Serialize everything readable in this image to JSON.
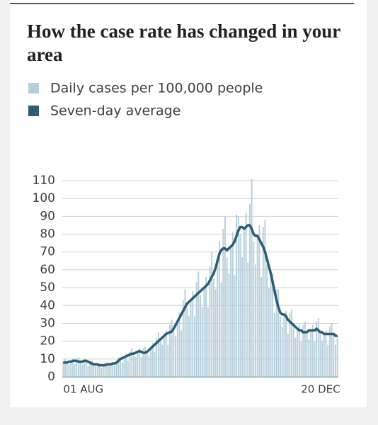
{
  "chart_data": {
    "type": "bar-line",
    "title": "How the case rate has changed in your area",
    "categories": [
      "01 AUG",
      null,
      null,
      null,
      null,
      null,
      null,
      null,
      null,
      null,
      null,
      null,
      null,
      null,
      null,
      null,
      null,
      null,
      null,
      null,
      null,
      null,
      null,
      null,
      null,
      null,
      null,
      null,
      null,
      null,
      null,
      null,
      null,
      null,
      null,
      null,
      null,
      null,
      null,
      null,
      null,
      null,
      null,
      null,
      null,
      null,
      null,
      null,
      null,
      null,
      null,
      null,
      null,
      null,
      null,
      null,
      null,
      null,
      null,
      null,
      null,
      null,
      null,
      null,
      null,
      null,
      null,
      null,
      null,
      null,
      null,
      null,
      null,
      null,
      null,
      null,
      null,
      null,
      null,
      null,
      null,
      null,
      null,
      null,
      null,
      null,
      null,
      null,
      null,
      null,
      null,
      null,
      null,
      null,
      null,
      null,
      null,
      null,
      null,
      null,
      null,
      null,
      null,
      null,
      null,
      null,
      null,
      null,
      null,
      null,
      null,
      null,
      null,
      null,
      null,
      null,
      null,
      null,
      null,
      null,
      null,
      null,
      null,
      null,
      null,
      null,
      null,
      null,
      null,
      null,
      null,
      null,
      null,
      null,
      null,
      null,
      null,
      null,
      null,
      null,
      null,
      "20 DEC",
      null,
      null,
      null
    ],
    "series": [
      {
        "name": "Daily cases per 100,000 people",
        "color": "#b5cfdb",
        "type": "bar",
        "values": [
          9,
          10,
          8,
          7,
          9,
          10,
          7,
          10,
          11,
          8,
          7,
          9,
          10,
          6,
          9,
          9,
          7,
          6,
          7,
          7,
          5,
          7,
          8,
          7,
          6,
          7,
          8,
          6,
          9,
          11,
          10,
          8,
          11,
          13,
          9,
          14,
          16,
          12,
          11,
          14,
          16,
          11,
          16,
          17,
          13,
          12,
          16,
          19,
          14,
          22,
          25,
          20,
          18,
          23,
          26,
          18,
          29,
          32,
          26,
          23,
          31,
          36,
          26,
          43,
          49,
          39,
          34,
          43,
          48,
          34,
          53,
          59,
          46,
          39,
          50,
          56,
          39,
          62,
          70,
          55,
          49,
          65,
          76,
          53,
          83,
          90,
          67,
          58,
          73,
          81,
          57,
          91,
          90,
          80,
          67,
          83,
          92,
          64,
          97,
          111,
          76,
          63,
          79,
          85,
          56,
          84,
          88,
          63,
          50,
          58,
          58,
          36,
          49,
          49,
          34,
          28,
          35,
          37,
          24,
          36,
          38,
          28,
          22,
          27,
          29,
          20,
          29,
          31,
          24,
          21,
          26,
          29,
          20,
          31,
          33,
          24,
          20,
          24,
          26,
          18,
          28,
          30,
          23,
          18,
          23
        ]
      },
      {
        "name": "Seven-day average",
        "color": "#2d5c75",
        "type": "line",
        "values": [
          8,
          8,
          8,
          8.5,
          8.5,
          9,
          9,
          9,
          8.5,
          8.5,
          8.5,
          9,
          9,
          8.5,
          8,
          7.5,
          7,
          7,
          7,
          6.5,
          6.5,
          6.5,
          6.5,
          7,
          7,
          7,
          7.5,
          7.5,
          8,
          9,
          10,
          10.5,
          11,
          11.5,
          12,
          12.5,
          13,
          13,
          13.5,
          14,
          14.5,
          14,
          13.5,
          13.5,
          14,
          15,
          16,
          17,
          18,
          19,
          20,
          21,
          22,
          23,
          24,
          24.5,
          25,
          25.5,
          27,
          29,
          31,
          33,
          35,
          37,
          39,
          41,
          42,
          43,
          44,
          45,
          46,
          47,
          48,
          49,
          50,
          51,
          52,
          54,
          56,
          58,
          61,
          65,
          69,
          71,
          72,
          72,
          71,
          72,
          73,
          74,
          76,
          79,
          82,
          84,
          84,
          83,
          84,
          85,
          85,
          83,
          80,
          79,
          79,
          77,
          75,
          73,
          70,
          66,
          62,
          58,
          53,
          48,
          43,
          39,
          36,
          35,
          35,
          34,
          32,
          31,
          30,
          29,
          28,
          27,
          26,
          26,
          25,
          25,
          25,
          26,
          26,
          26,
          26,
          27,
          26,
          25,
          25,
          24,
          24,
          24,
          24,
          24,
          24,
          23,
          23
        ]
      }
    ],
    "ylim": [
      0,
      110
    ],
    "yticks": [
      0,
      10,
      20,
      30,
      40,
      50,
      60,
      70,
      80,
      90,
      100,
      110
    ],
    "grid": true
  }
}
